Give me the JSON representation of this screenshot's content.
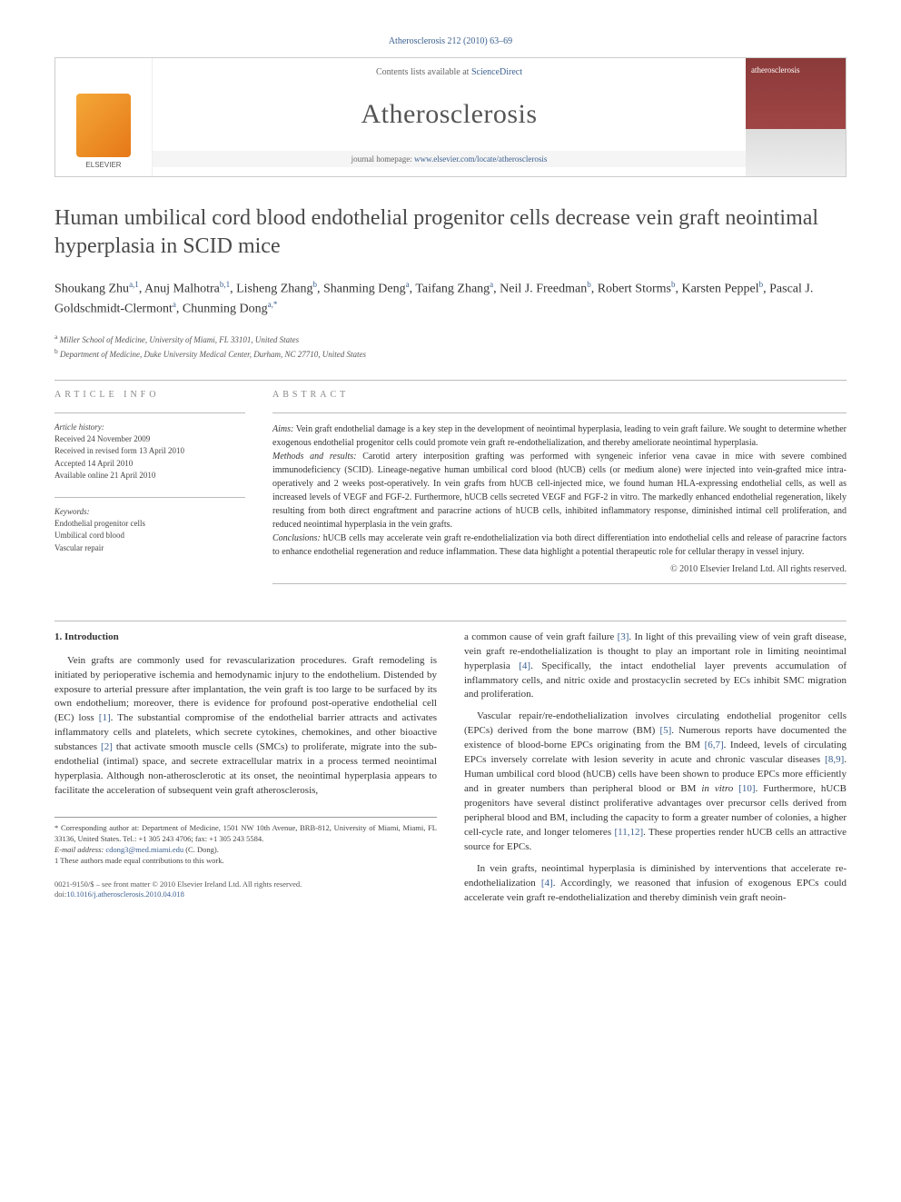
{
  "citation": "Atherosclerosis 212 (2010) 63–69",
  "header": {
    "contents_prefix": "Contents lists available at ",
    "contents_link": "ScienceDirect",
    "journal": "Atherosclerosis",
    "homepage_prefix": "journal homepage: ",
    "homepage_url": "www.elsevier.com/locate/atherosclerosis",
    "publisher": "ELSEVIER",
    "cover_label": "atherosclerosis"
  },
  "title": "Human umbilical cord blood endothelial progenitor cells decrease vein graft neointimal hyperplasia in SCID mice",
  "authors_html": "Shoukang Zhu<sup>a,1</sup>, Anuj Malhotra<sup>b,1</sup>, Lisheng Zhang<sup>b</sup>, Shanming Deng<sup>a</sup>, Taifang Zhang<sup>a</sup>, Neil J. Freedman<sup>b</sup>, Robert Storms<sup>b</sup>, Karsten Peppel<sup>b</sup>, Pascal J. Goldschmidt-Clermont<sup>a</sup>, Chunming Dong<sup>a,*</sup>",
  "affiliations": {
    "a": "Miller School of Medicine, University of Miami, FL 33101, United States",
    "b": "Department of Medicine, Duke University Medical Center, Durham, NC 27710, United States"
  },
  "info": {
    "heading": "ARTICLE INFO",
    "history_label": "Article history:",
    "history": [
      "Received 24 November 2009",
      "Received in revised form 13 April 2010",
      "Accepted 14 April 2010",
      "Available online 21 April 2010"
    ],
    "keywords_label": "Keywords:",
    "keywords": [
      "Endothelial progenitor cells",
      "Umbilical cord blood",
      "Vascular repair"
    ]
  },
  "abstract": {
    "heading": "ABSTRACT",
    "aims_label": "Aims:",
    "aims": "Vein graft endothelial damage is a key step in the development of neointimal hyperplasia, leading to vein graft failure. We sought to determine whether exogenous endothelial progenitor cells could promote vein graft re-endothelialization, and thereby ameliorate neointimal hyperplasia.",
    "methods_label": "Methods and results:",
    "methods": "Carotid artery interposition grafting was performed with syngeneic inferior vena cavae in mice with severe combined immunodeficiency (SCID). Lineage-negative human umbilical cord blood (hUCB) cells (or medium alone) were injected into vein-grafted mice intra-operatively and 2 weeks post-operatively. In vein grafts from hUCB cell-injected mice, we found human HLA-expressing endothelial cells, as well as increased levels of VEGF and FGF-2. Furthermore, hUCB cells secreted VEGF and FGF-2 in vitro. The markedly enhanced endothelial regeneration, likely resulting from both direct engraftment and paracrine actions of hUCB cells, inhibited inflammatory response, diminished intimal cell proliferation, and reduced neointimal hyperplasia in the vein grafts.",
    "conclusions_label": "Conclusions:",
    "conclusions": "hUCB cells may accelerate vein graft re-endothelialization via both direct differentiation into endothelial cells and release of paracrine factors to enhance endothelial regeneration and reduce inflammation. These data highlight a potential therapeutic role for cellular therapy in vessel injury.",
    "copyright": "© 2010 Elsevier Ireland Ltd. All rights reserved."
  },
  "body": {
    "section_heading": "1. Introduction",
    "p1": "Vein grafts are commonly used for revascularization procedures. Graft remodeling is initiated by perioperative ischemia and hemodynamic injury to the endothelium. Distended by exposure to arterial pressure after implantation, the vein graft is too large to be surfaced by its own endothelium; moreover, there is evidence for profound post-operative endothelial cell (EC) loss [1]. The substantial compromise of the endothelial barrier attracts and activates inflammatory cells and platelets, which secrete cytokines, chemokines, and other bioactive substances [2] that activate smooth muscle cells (SMCs) to proliferate, migrate into the sub-endothelial (intimal) space, and secrete extracellular matrix in a process termed neointimal hyperplasia. Although non-atherosclerotic at its onset, the neointimal hyperplasia appears to facilitate the acceleration of subsequent vein graft atherosclerosis,",
    "p2": "a common cause of vein graft failure [3]. In light of this prevailing view of vein graft disease, vein graft re-endothelialization is thought to play an important role in limiting neointimal hyperplasia [4]. Specifically, the intact endothelial layer prevents accumulation of inflammatory cells, and nitric oxide and prostacyclin secreted by ECs inhibit SMC migration and proliferation.",
    "p3": "Vascular repair/re-endothelialization involves circulating endothelial progenitor cells (EPCs) derived from the bone marrow (BM) [5]. Numerous reports have documented the existence of blood-borne EPCs originating from the BM [6,7]. Indeed, levels of circulating EPCs inversely correlate with lesion severity in acute and chronic vascular diseases [8,9]. Human umbilical cord blood (hUCB) cells have been shown to produce EPCs more efficiently and in greater numbers than peripheral blood or BM in vitro [10]. Furthermore, hUCB progenitors have several distinct proliferative advantages over precursor cells derived from peripheral blood and BM, including the capacity to form a greater number of colonies, a higher cell-cycle rate, and longer telomeres [11,12]. These properties render hUCB cells an attractive source for EPCs.",
    "p4": "In vein grafts, neointimal hyperplasia is diminished by interventions that accelerate re-endothelialization [4]. Accordingly, we reasoned that infusion of exogenous EPCs could accelerate vein graft re-endothelialization and thereby diminish vein graft neoin-"
  },
  "footnotes": {
    "corr": "* Corresponding author at: Department of Medicine, 1501 NW 10th Avenue, BRB-812, University of Miami, Miami, FL 33136, United States. Tel.: +1 305 243 4706; fax: +1 305 243 5584.",
    "email_label": "E-mail address:",
    "email": "cdong3@med.miami.edu",
    "email_name": "(C. Dong).",
    "note1": "1 These authors made equal contributions to this work."
  },
  "footer": {
    "line1": "0021-9150/$ – see front matter © 2010 Elsevier Ireland Ltd. All rights reserved.",
    "doi_label": "doi:",
    "doi": "10.1016/j.atherosclerosis.2010.04.018"
  },
  "colors": {
    "link": "#3a5f8f",
    "title": "#4a4a4a",
    "elsevier": "#e67817",
    "cover": "#8b3a3a"
  }
}
